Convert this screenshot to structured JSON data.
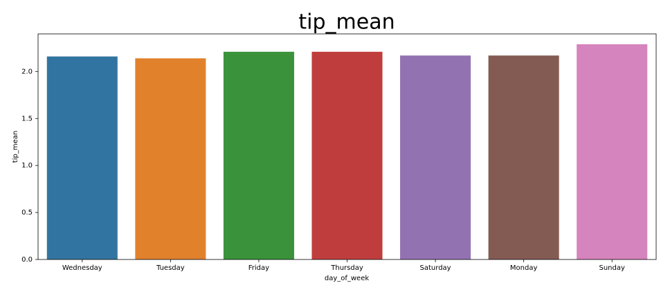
{
  "chart_data": {
    "type": "bar",
    "title": "tip_mean",
    "x_label": "day_of_week",
    "y_label": "tip_mean",
    "categories": [
      "Wednesday",
      "Tuesday",
      "Friday",
      "Thursday",
      "Saturday",
      "Monday",
      "Sunday"
    ],
    "values": [
      2.16,
      2.14,
      2.21,
      2.21,
      2.17,
      2.17,
      2.29
    ],
    "colors": [
      "#3274a1",
      "#e1812c",
      "#3a923a",
      "#c03d3e",
      "#9372b2",
      "#845b53",
      "#d684bd"
    ],
    "ylim": [
      0,
      2.4
    ],
    "yticks": [
      {
        "value": 0,
        "label": "0.0"
      },
      0.5,
      {
        "value": 1,
        "label": "1.0"
      },
      1.5,
      {
        "value": 2,
        "label": "2.0"
      }
    ],
    "grid": false
  }
}
